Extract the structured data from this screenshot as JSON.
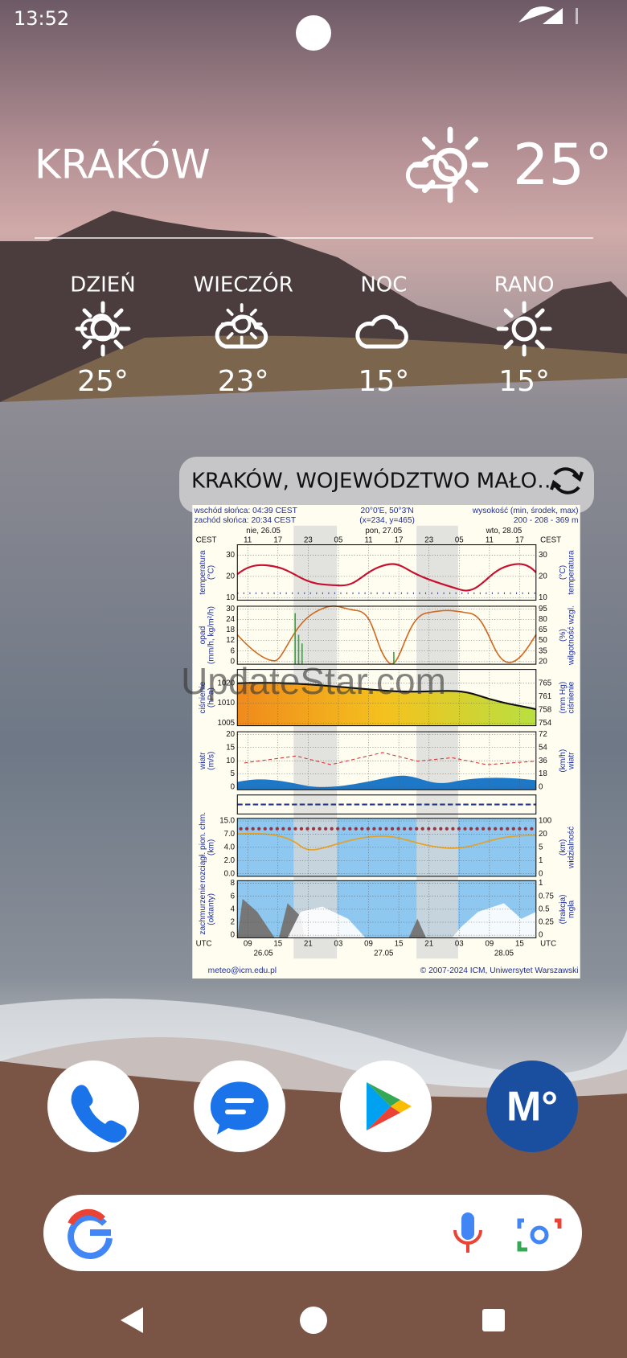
{
  "status_bar": {
    "time": "13:52"
  },
  "weather": {
    "city": "KRAKÓW",
    "temperature": "25°",
    "forecast": [
      {
        "label": "DZIEŃ",
        "temperature": "25°"
      },
      {
        "label": "WIECZÓR",
        "temperature": "23°"
      },
      {
        "label": "NOC",
        "temperature": "15°"
      },
      {
        "label": "RANO",
        "temperature": "15°"
      }
    ]
  },
  "widget": {
    "title": "KRAKÓW, WOJEWÓDZTWO MAŁO…",
    "meteogram": {
      "header": {
        "sunrise": "wschód słońca: 04:39 CEST",
        "sunset": "zachód słońca: 20:34 CEST",
        "coords": "20°0'E, 50°3'N",
        "grid": "(x=234, y=465)",
        "height_label": "wysokość (min, środek, max)",
        "height": "200 - 208 - 369 m"
      },
      "days": [
        "nie, 26.05",
        "pon, 27.05",
        "wto, 28.05"
      ],
      "top_zone": "CEST",
      "top_hours": [
        "11",
        "17",
        "23",
        "05",
        "11",
        "17",
        "23",
        "05",
        "11",
        "17"
      ],
      "bottom_zone": "UTC",
      "bottom_hours": [
        "09",
        "15",
        "21",
        "03",
        "09",
        "15",
        "21",
        "03",
        "09",
        "15"
      ],
      "bottom_dates": [
        "26.05",
        "27.05",
        "28.05"
      ],
      "panels": [
        {
          "left_label": [
            "temperatura",
            "(°C)"
          ],
          "right_label": [
            "(°C)",
            "temperatura"
          ],
          "left_ticks": [
            "30",
            "20",
            "10"
          ],
          "right_ticks": [
            "30",
            "20",
            "10"
          ]
        },
        {
          "left_label": [
            "opad",
            "(mm/h, kg/m²/h)"
          ],
          "right_label": [
            "(%)",
            "wilgotność wzgl."
          ],
          "left_ticks": [
            "30",
            "24",
            "18",
            "12",
            "6",
            "0"
          ],
          "right_ticks": [
            "95",
            "80",
            "65",
            "50",
            "35",
            "20"
          ]
        },
        {
          "left_label": [
            "ciśnienie",
            "(hPa)"
          ],
          "right_label": [
            "(mm Hg)",
            "ciśnienie"
          ],
          "left_ticks": [
            "1020",
            "1010",
            "1005"
          ],
          "right_ticks": [
            "765",
            "761",
            "758",
            "754"
          ]
        },
        {
          "left_label": [
            "wiatr",
            "(m/s)"
          ],
          "right_label": [
            "(km/h)",
            "wiatr"
          ],
          "left_ticks": [
            "20",
            "15",
            "10",
            "5",
            "0"
          ],
          "right_ticks": [
            "72",
            "54",
            "36",
            "18",
            "0"
          ]
        },
        {
          "left_label": [
            "rozciągł. pion. chm.",
            "(km)"
          ],
          "right_label": [
            "(km)",
            "widzialność"
          ],
          "left_ticks": [
            "15.0",
            "7.0",
            "4.0",
            "2.0",
            "0.0"
          ],
          "right_ticks": [
            "100",
            "20",
            "5",
            "1",
            "0"
          ]
        },
        {
          "left_label": [
            "zachmurzenie",
            "(oktanty)"
          ],
          "right_label": [
            "(frakcja)",
            "mgła"
          ],
          "left_ticks": [
            "8",
            "6",
            "4",
            "2",
            "0"
          ],
          "right_ticks": [
            "1",
            "0.75",
            "0.5",
            "0.25",
            "0"
          ]
        }
      ],
      "footer_left": "meteo@icm.edu.pl",
      "footer_right": "© 2007-2024 ICM, Uniwersytet Warszawski"
    }
  },
  "watermark": "UpdateStar.com",
  "dock": {
    "meteo_icon_label": "M°"
  }
}
